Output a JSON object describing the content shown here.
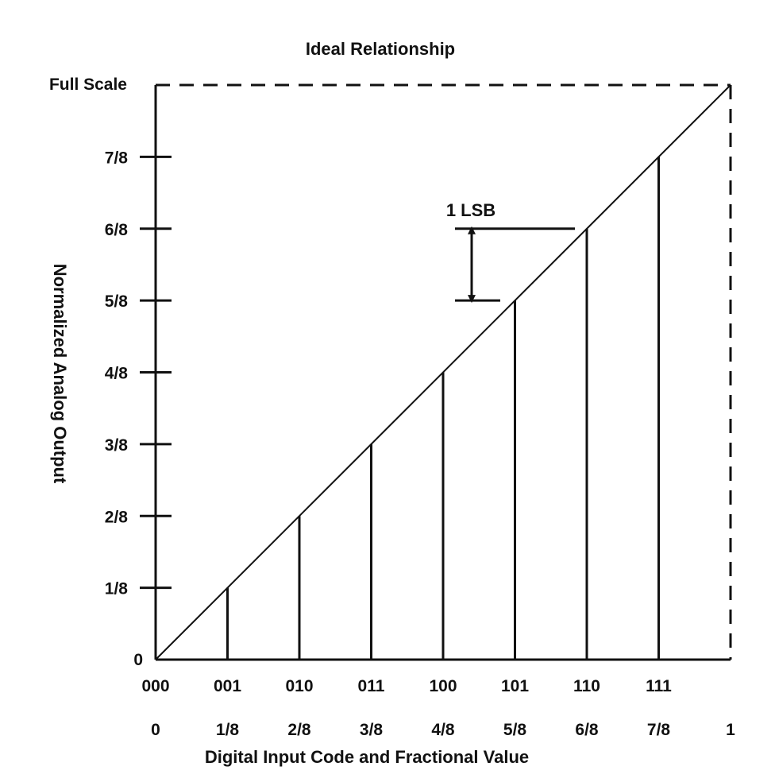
{
  "chart_data": {
    "type": "line",
    "title": "Ideal Relationship",
    "xlabel": "Digital Input Code and Fractional Value",
    "ylabel": "Normalized Analog Output",
    "xlim": [
      0,
      1
    ],
    "ylim": [
      0,
      1
    ],
    "grid": false,
    "x_codes": [
      "000",
      "001",
      "010",
      "011",
      "100",
      "101",
      "110",
      "111"
    ],
    "x_fractions": [
      "0",
      "1/8",
      "2/8",
      "3/8",
      "4/8",
      "5/8",
      "6/8",
      "7/8",
      "1"
    ],
    "y_tick_labels": [
      "0",
      "1/8",
      "2/8",
      "3/8",
      "4/8",
      "5/8",
      "6/8",
      "7/8"
    ],
    "y_full_scale_label": "Full Scale",
    "series": [
      {
        "x": [
          0,
          1
        ],
        "y": [
          0,
          1
        ]
      }
    ],
    "stems": [
      {
        "x": 0.125,
        "y": 0.125
      },
      {
        "x": 0.25,
        "y": 0.25
      },
      {
        "x": 0.375,
        "y": 0.375
      },
      {
        "x": 0.5,
        "y": 0.5
      },
      {
        "x": 0.625,
        "y": 0.625
      },
      {
        "x": 0.75,
        "y": 0.75
      },
      {
        "x": 0.875,
        "y": 0.875
      }
    ],
    "full_scale_reference": {
      "x": 1,
      "y": 1,
      "style": "dashed"
    },
    "annotation": {
      "text": "1 LSB",
      "y_from": 0.625,
      "y_to": 0.75
    },
    "colors": {
      "line": "#111111",
      "background": "#ffffff"
    }
  }
}
